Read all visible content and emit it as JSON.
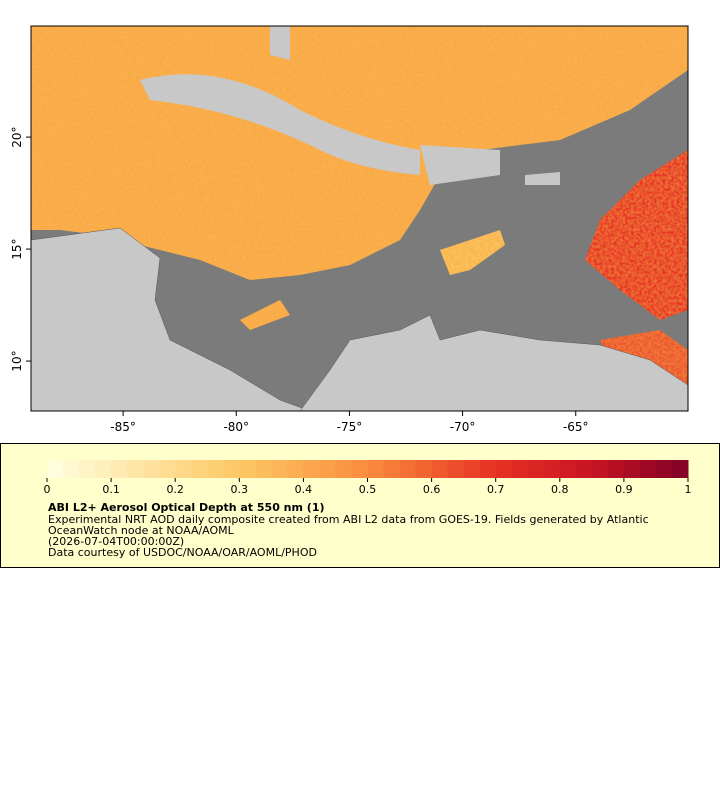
{
  "map": {
    "xlim": [
      -89.07,
      -60.04
    ],
    "ylim": [
      7.77,
      24.96
    ],
    "xticks": [
      {
        "value": -85,
        "label": "-85°"
      },
      {
        "value": -80,
        "label": "-80°"
      },
      {
        "value": -75,
        "label": "-75°"
      },
      {
        "value": -70,
        "label": "-70°"
      },
      {
        "value": -65,
        "label": "-65°"
      }
    ],
    "yticks": [
      {
        "value": 10,
        "label": "10°"
      },
      {
        "value": 15,
        "label": "15°"
      },
      {
        "value": 20,
        "label": "20°"
      }
    ]
  },
  "colorbar": {
    "lim": [
      0,
      1
    ],
    "ticks": [
      0,
      0.1,
      0.2,
      0.3,
      0.4,
      0.5,
      0.6,
      0.7,
      0.8,
      0.9,
      1
    ]
  },
  "legend": {
    "title": "ABI L2+ Aerosol Optical Depth at 550 nm (1)",
    "lines": [
      "Experimental NRT AOD daily composite created from ABI L2 data from GOES-19. Fields generated by Atlantic",
      "OceanWatch node at NOAA/AOML",
      "(2026-07-04T00:00:00Z)",
      "Data courtesy of USDOC/NOAA/OAR/AOML/PHOD"
    ]
  }
}
